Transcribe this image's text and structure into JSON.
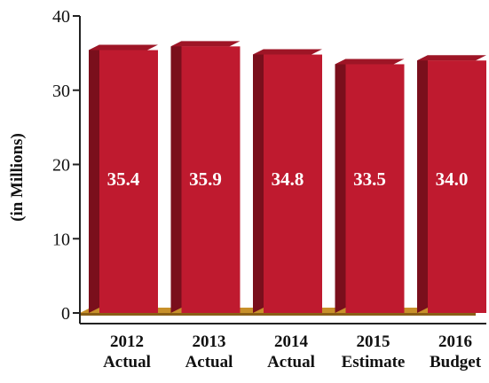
{
  "chart_data": {
    "type": "bar",
    "ylabel": "(in Millions)",
    "ylim": [
      0,
      40
    ],
    "yticks": [
      "0",
      "10",
      "20",
      "30",
      "40"
    ],
    "categories": [
      [
        "2012",
        "Actual"
      ],
      [
        "2013",
        "Actual"
      ],
      [
        "2014",
        "Actual"
      ],
      [
        "2015",
        "Estimate"
      ],
      [
        "2016",
        "Budget"
      ]
    ],
    "values": [
      35.4,
      35.9,
      34.8,
      33.5,
      34.0
    ],
    "value_labels": [
      "35.4",
      "35.9",
      "34.8",
      "33.5",
      "34.0"
    ],
    "colors": {
      "bar_front": "#bf1a2f",
      "bar_side": "#7a0f1c",
      "bar_top": "#9e1526",
      "floor": "#c8902a",
      "floor_dark": "#8a5f17",
      "axis": "#222222",
      "label": "#ffffff"
    },
    "grid": false
  }
}
